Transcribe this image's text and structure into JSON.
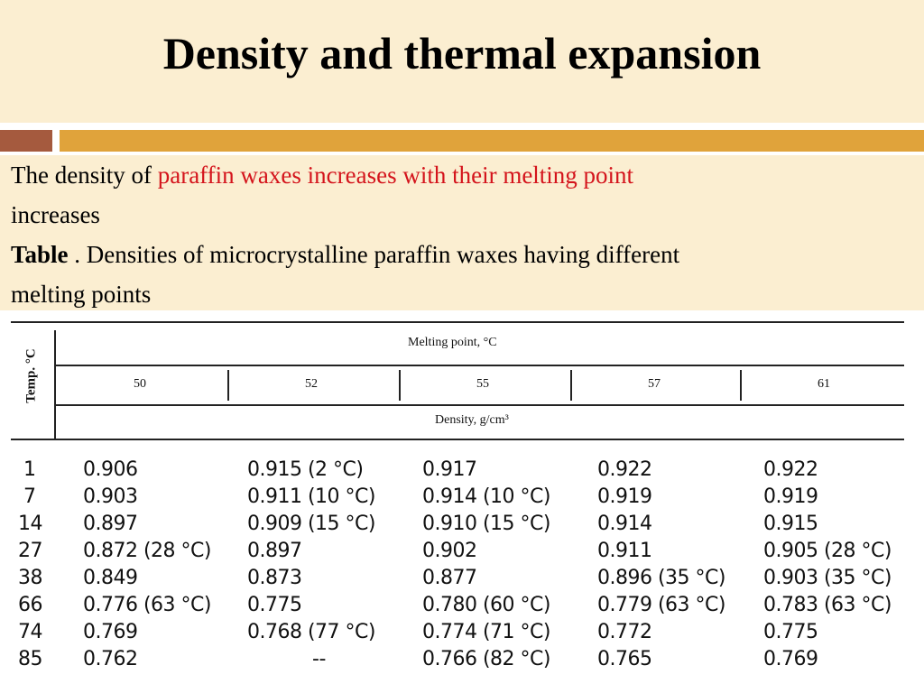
{
  "slide": {
    "title": "Density and thermal expansion",
    "line1_prefix": "The density of ",
    "line1_highlight": "paraffin waxes increases with their melting point",
    "line1_suffix": "increases",
    "caption_bold": "Table",
    "caption_rest": " . Densities of microcrystalline paraffin waxes having different",
    "caption_rest2": "melting points"
  },
  "colors": {
    "title_band": "#fbeed1",
    "accent_left": "#a55a3e",
    "accent_right": "#e0a33b",
    "highlight_text": "#d4141c"
  },
  "table": {
    "row_header_label": "Temp. °C",
    "group_header": "Melting point, °C",
    "columns": [
      "50",
      "52",
      "55",
      "57",
      "61"
    ],
    "unit_header": "Density, g/cm³",
    "rows": [
      {
        "temp": "1",
        "values": [
          "0.906",
          "0.915 (2 °C)",
          "0.917",
          "0.922",
          "0.922"
        ]
      },
      {
        "temp": "7",
        "values": [
          "0.903",
          "0.911 (10 °C)",
          "0.914 (10 °C)",
          "0.919",
          "0.919"
        ]
      },
      {
        "temp": "14",
        "values": [
          "0.897",
          "0.909 (15 °C)",
          "0.910 (15 °C)",
          "0.914",
          "0.915"
        ]
      },
      {
        "temp": "27",
        "values": [
          "0.872 (28 °C)",
          "0.897",
          "0.902",
          "0.911",
          "0.905 (28 °C)"
        ]
      },
      {
        "temp": "38",
        "values": [
          "0.849",
          "0.873",
          "0.877",
          "0.896 (35 °C)",
          "0.903 (35 °C)"
        ]
      },
      {
        "temp": "66",
        "values": [
          "0.776 (63 °C)",
          "0.775",
          "0.780 (60 °C)",
          "0.779 (63 °C)",
          "0.783 (63 °C)"
        ]
      },
      {
        "temp": "74",
        "values": [
          "0.769",
          "0.768 (77 °C)",
          "0.774 (71 °C)",
          "0.772",
          "0.775"
        ]
      },
      {
        "temp": "85",
        "values": [
          "0.762",
          "--",
          "0.766 (82 °C)",
          "0.765",
          "0.769"
        ]
      }
    ]
  }
}
